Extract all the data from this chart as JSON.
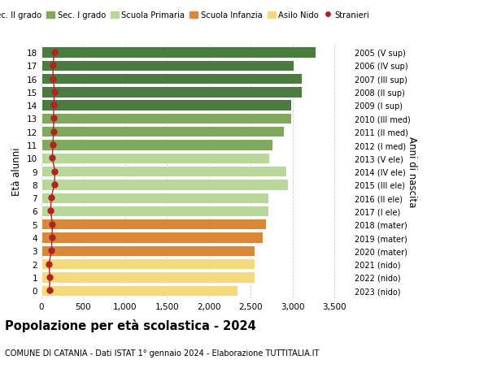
{
  "ages": [
    18,
    17,
    16,
    15,
    14,
    13,
    12,
    11,
    10,
    9,
    8,
    7,
    6,
    5,
    4,
    3,
    2,
    1,
    0
  ],
  "right_labels": [
    "2005 (V sup)",
    "2006 (IV sup)",
    "2007 (III sup)",
    "2008 (II sup)",
    "2009 (I sup)",
    "2010 (III med)",
    "2011 (II med)",
    "2012 (I med)",
    "2013 (V ele)",
    "2014 (IV ele)",
    "2015 (III ele)",
    "2016 (II ele)",
    "2017 (I ele)",
    "2018 (mater)",
    "2019 (mater)",
    "2020 (mater)",
    "2021 (nido)",
    "2022 (nido)",
    "2023 (nido)"
  ],
  "bar_values": [
    3270,
    3010,
    3110,
    3110,
    2980,
    2980,
    2890,
    2760,
    2720,
    2920,
    2940,
    2710,
    2710,
    2680,
    2640,
    2540,
    2540,
    2540,
    2340
  ],
  "stranieri_values": [
    155,
    135,
    140,
    155,
    145,
    145,
    145,
    135,
    130,
    160,
    155,
    115,
    110,
    130,
    125,
    120,
    90,
    100,
    95
  ],
  "bar_colors": [
    "#4a7c3f",
    "#4a7c3f",
    "#4a7c3f",
    "#4a7c3f",
    "#4a7c3f",
    "#7faa5e",
    "#7faa5e",
    "#7faa5e",
    "#b8d89a",
    "#b8d89a",
    "#b8d89a",
    "#b8d89a",
    "#b8d89a",
    "#d9883a",
    "#d9883a",
    "#d9883a",
    "#f5d97a",
    "#f5d97a",
    "#f5d97a"
  ],
  "legend_labels": [
    "Sec. II grado",
    "Sec. I grado",
    "Scuola Primaria",
    "Scuola Infanzia",
    "Asilo Nido",
    "Stranieri"
  ],
  "legend_colors": [
    "#4a7c3f",
    "#7faa5e",
    "#b8d89a",
    "#d9883a",
    "#f5d97a",
    "#b22222"
  ],
  "ylabel_left": "Età alunni",
  "ylabel_right": "Anni di nascita",
  "title": "Popolazione per età scolastica - 2024",
  "subtitle": "COMUNE DI CATANIA - Dati ISTAT 1° gennaio 2024 - Elaborazione TUTTITALIA.IT",
  "xlim": [
    0,
    3700
  ],
  "xticks": [
    0,
    500,
    1000,
    1500,
    2000,
    2500,
    3000,
    3500
  ],
  "xtick_labels": [
    "0",
    "500",
    "1,000",
    "1,500",
    "2,000",
    "2,500",
    "3,000",
    "3,500"
  ],
  "bg_color": "#ffffff",
  "bar_height": 0.82,
  "stranieri_color": "#b22222"
}
